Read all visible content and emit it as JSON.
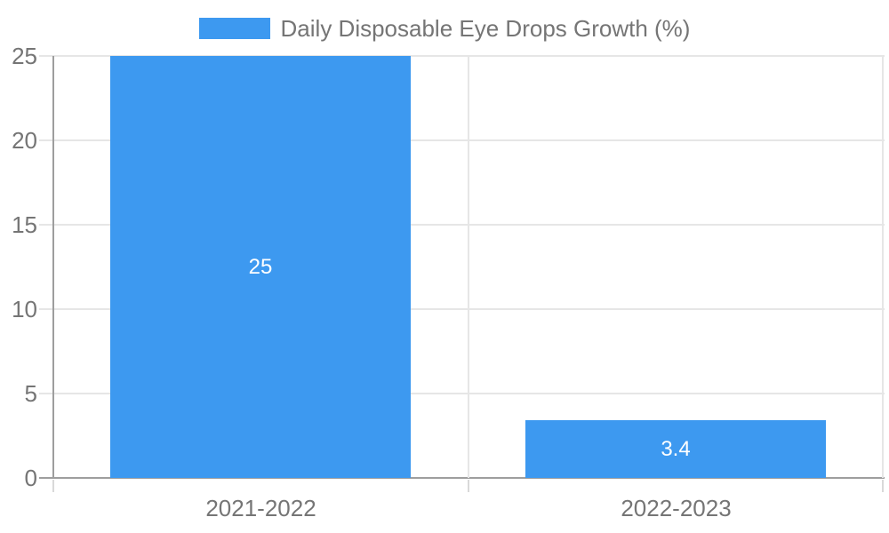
{
  "legend": {
    "label": "Daily Disposable Eye Drops Growth (%)",
    "swatch_color": "#3D99F0"
  },
  "chart_data": {
    "type": "bar",
    "title": "Daily Disposable Eye Drops Growth (%)",
    "categories": [
      "2021-2022",
      "2022-2023"
    ],
    "values": [
      25,
      3.4
    ],
    "value_labels": [
      "25",
      "3.4"
    ],
    "xlabel": "",
    "ylabel": "",
    "ylim": [
      0,
      25
    ],
    "yticks": [
      0,
      5,
      10,
      15,
      20,
      25
    ],
    "grid": true,
    "legend_position": "top-center",
    "bar_color": "#3D99F0",
    "value_label_color": "#ffffff",
    "axis_text_color": "#757575",
    "grid_color": "#e6e6e6",
    "axis_line_color": "#9e9e9e",
    "minor_tick_color": "#d9d9d9"
  }
}
